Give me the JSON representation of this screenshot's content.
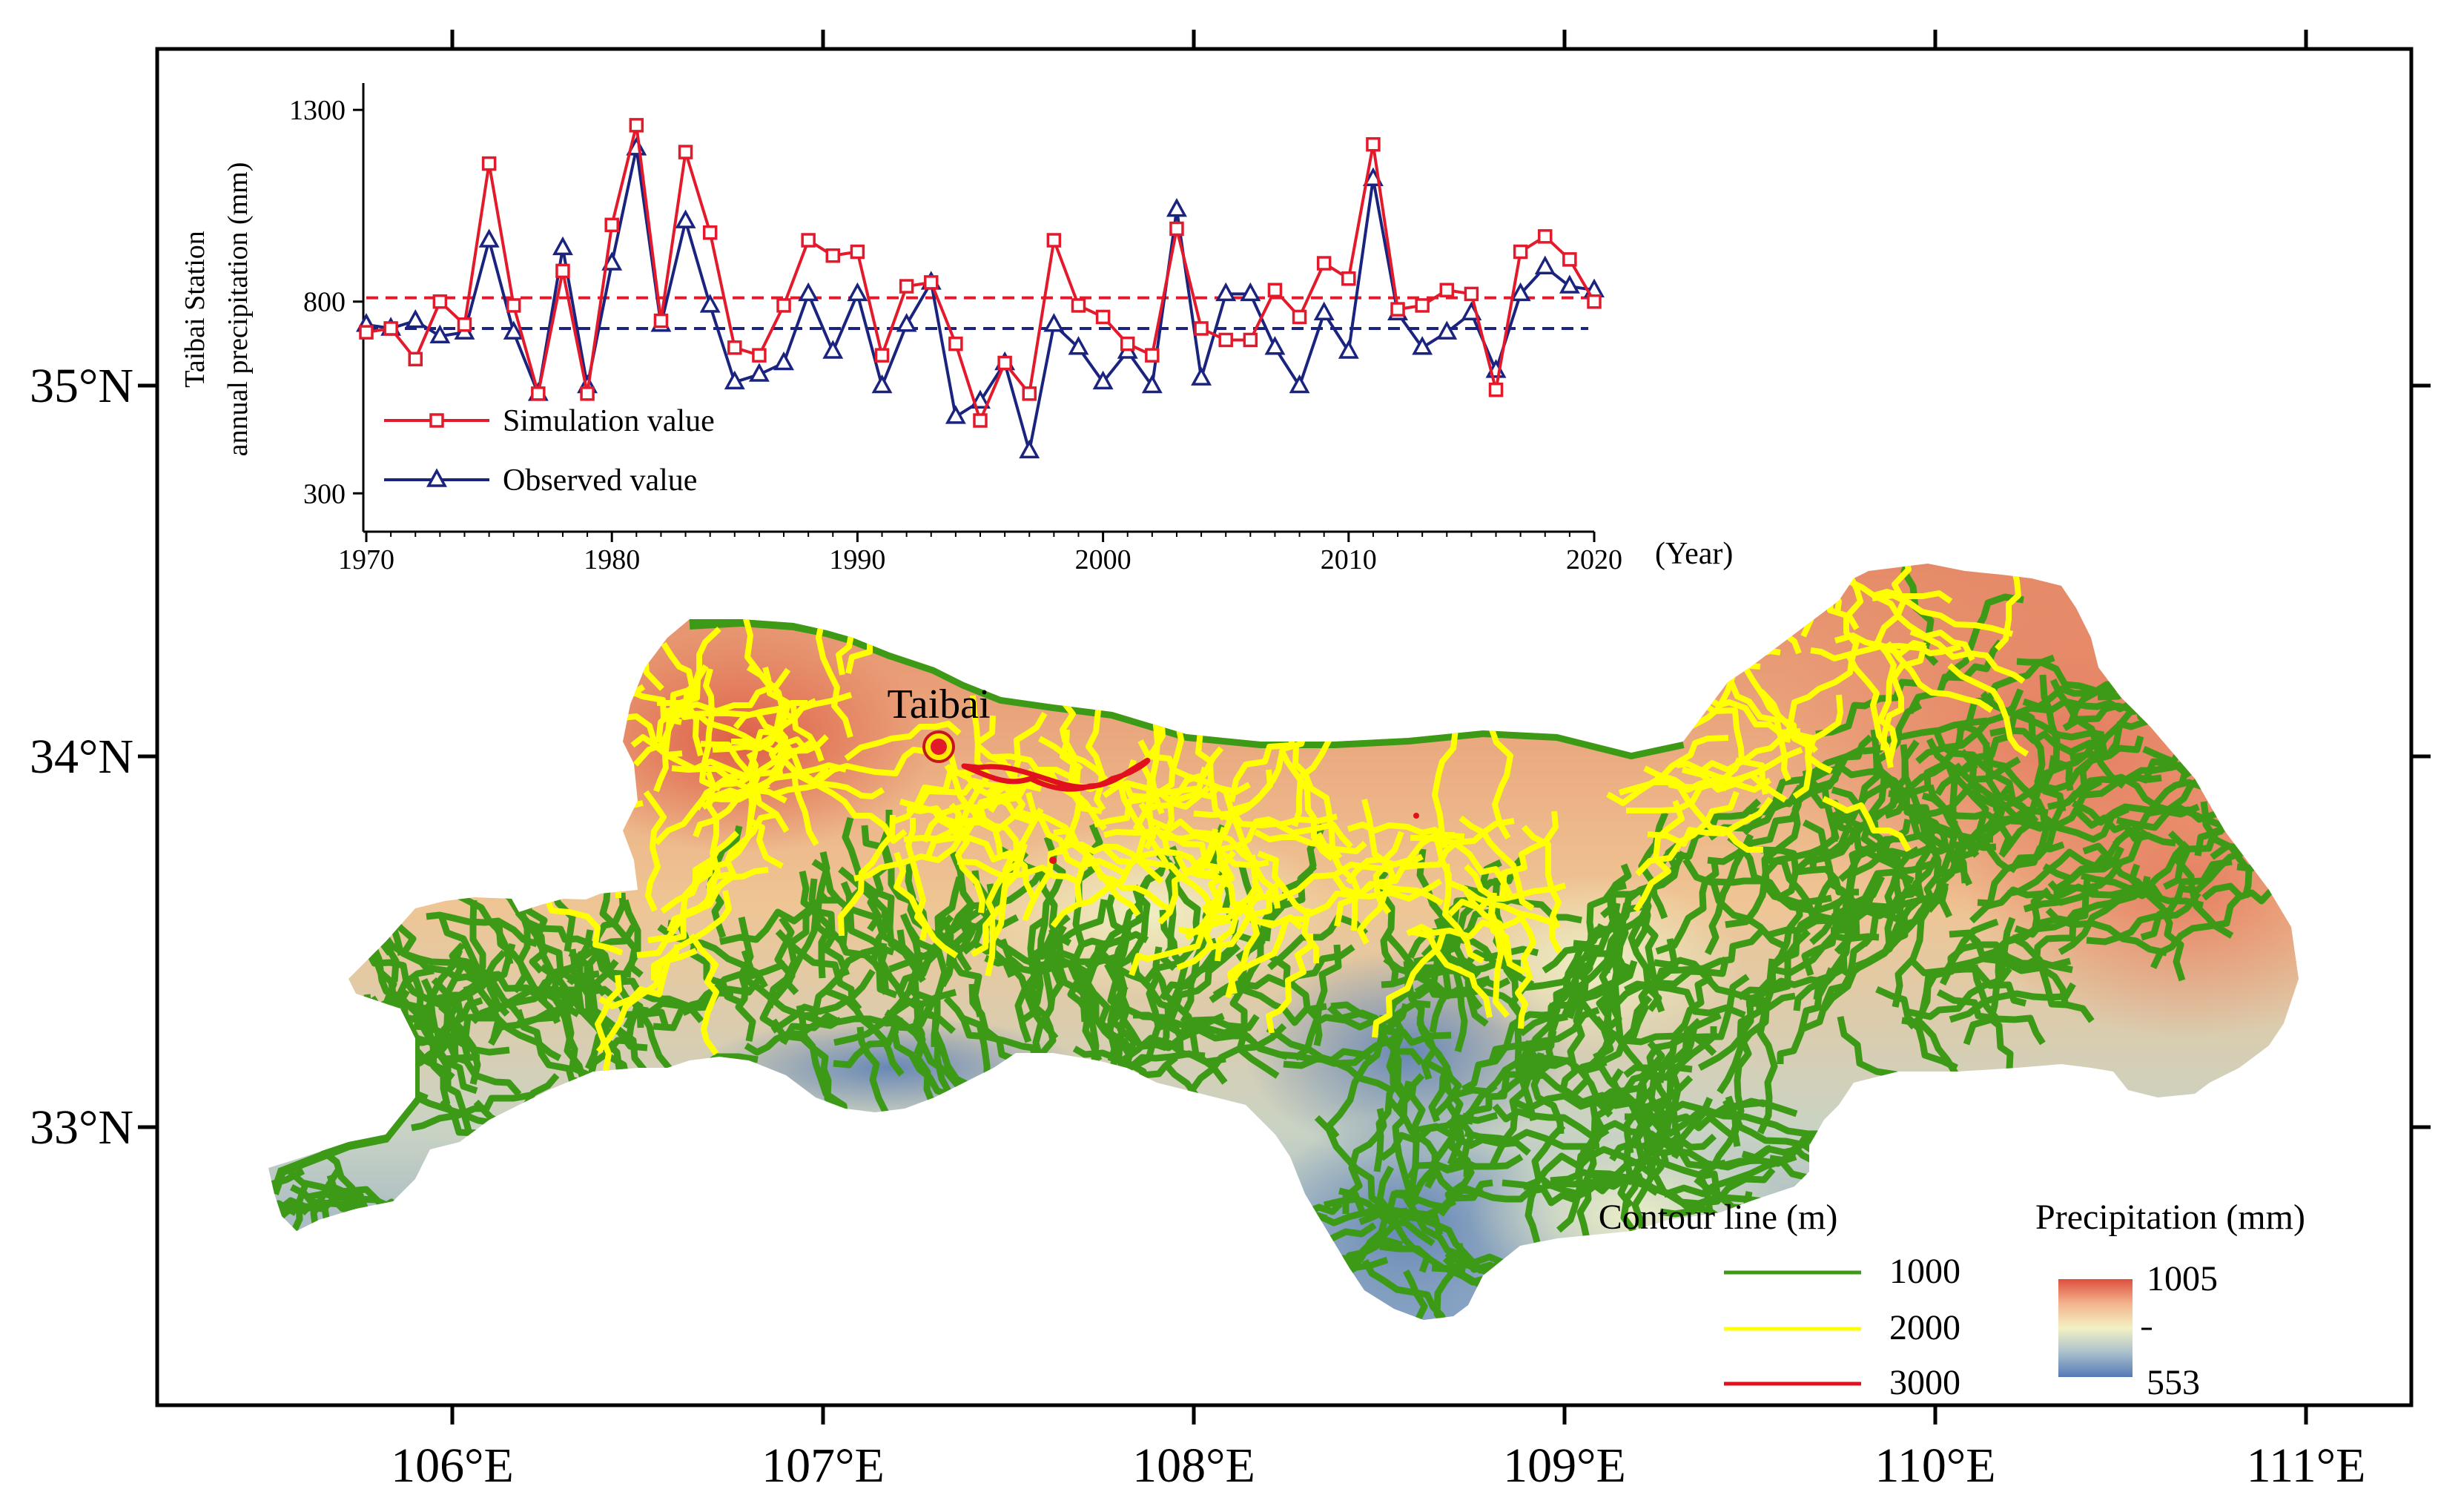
{
  "map": {
    "axis": {
      "lon_labels": [
        "106°E",
        "107°E",
        "108°E",
        "109°E",
        "110°E",
        "111°E"
      ],
      "lat_labels": [
        "35°N",
        "34°N",
        "33°N"
      ]
    },
    "station": {
      "name": "Taibai"
    },
    "legend": {
      "contour_title": "Contour line (m)",
      "contours": [
        {
          "label": "1000",
          "color": "#3c9a17"
        },
        {
          "label": "2000",
          "color": "#ffff00"
        },
        {
          "label": "3000",
          "color": "#e0101e"
        }
      ],
      "precip_title": "Precipitation (mm)",
      "precip_max": "1005",
      "precip_min": "553",
      "precip_colors": [
        "#dd4f3e",
        "#f3b48e",
        "#f3f1c3",
        "#a9c0cc",
        "#5579b6"
      ]
    }
  },
  "chart_data": {
    "type": "line",
    "ylabel_line1": "Taibai Station",
    "ylabel_line2": "annual precipitation  (mm)",
    "xlabel": "(Year)",
    "xlim": [
      1970,
      2020
    ],
    "ylim": [
      200,
      1370
    ],
    "xticks": [
      "1970",
      "1980",
      "1990",
      "2000",
      "2010",
      "2020"
    ],
    "yticks": [
      "300",
      "800",
      "1300"
    ],
    "x": [
      1970,
      1971,
      1972,
      1973,
      1974,
      1975,
      1976,
      1977,
      1978,
      1979,
      1980,
      1981,
      1982,
      1983,
      1984,
      1985,
      1986,
      1987,
      1988,
      1989,
      1990,
      1991,
      1992,
      1993,
      1994,
      1995,
      1996,
      1997,
      1998,
      1999,
      2000,
      2001,
      2002,
      2003,
      2004,
      2005,
      2006,
      2007,
      2008,
      2009,
      2010,
      2011,
      2012,
      2013,
      2014,
      2015,
      2016,
      2017,
      2018,
      2019,
      2020
    ],
    "series": [
      {
        "name": "Simulation value",
        "color": "#e31a2b",
        "marker": "square",
        "mean": 810,
        "values": [
          720,
          730,
          650,
          800,
          740,
          1160,
          790,
          560,
          880,
          560,
          1000,
          1260,
          750,
          1190,
          980,
          680,
          660,
          790,
          960,
          920,
          930,
          660,
          840,
          850,
          690,
          490,
          640,
          560,
          960,
          790,
          760,
          690,
          660,
          990,
          730,
          700,
          700,
          830,
          760,
          900,
          860,
          1210,
          780,
          790,
          830,
          820,
          570,
          930,
          970,
          910,
          800
        ]
      },
      {
        "name": "Observed value",
        "color": "#1a237e",
        "marker": "triangle",
        "mean": 730,
        "values": [
          740,
          730,
          750,
          710,
          720,
          960,
          720,
          560,
          940,
          580,
          900,
          1200,
          740,
          1010,
          790,
          590,
          610,
          640,
          820,
          670,
          820,
          580,
          740,
          850,
          500,
          540,
          640,
          410,
          740,
          680,
          590,
          670,
          580,
          1040,
          600,
          820,
          820,
          680,
          580,
          770,
          670,
          1120,
          770,
          680,
          720,
          770,
          620,
          820,
          890,
          840,
          830
        ]
      }
    ]
  }
}
